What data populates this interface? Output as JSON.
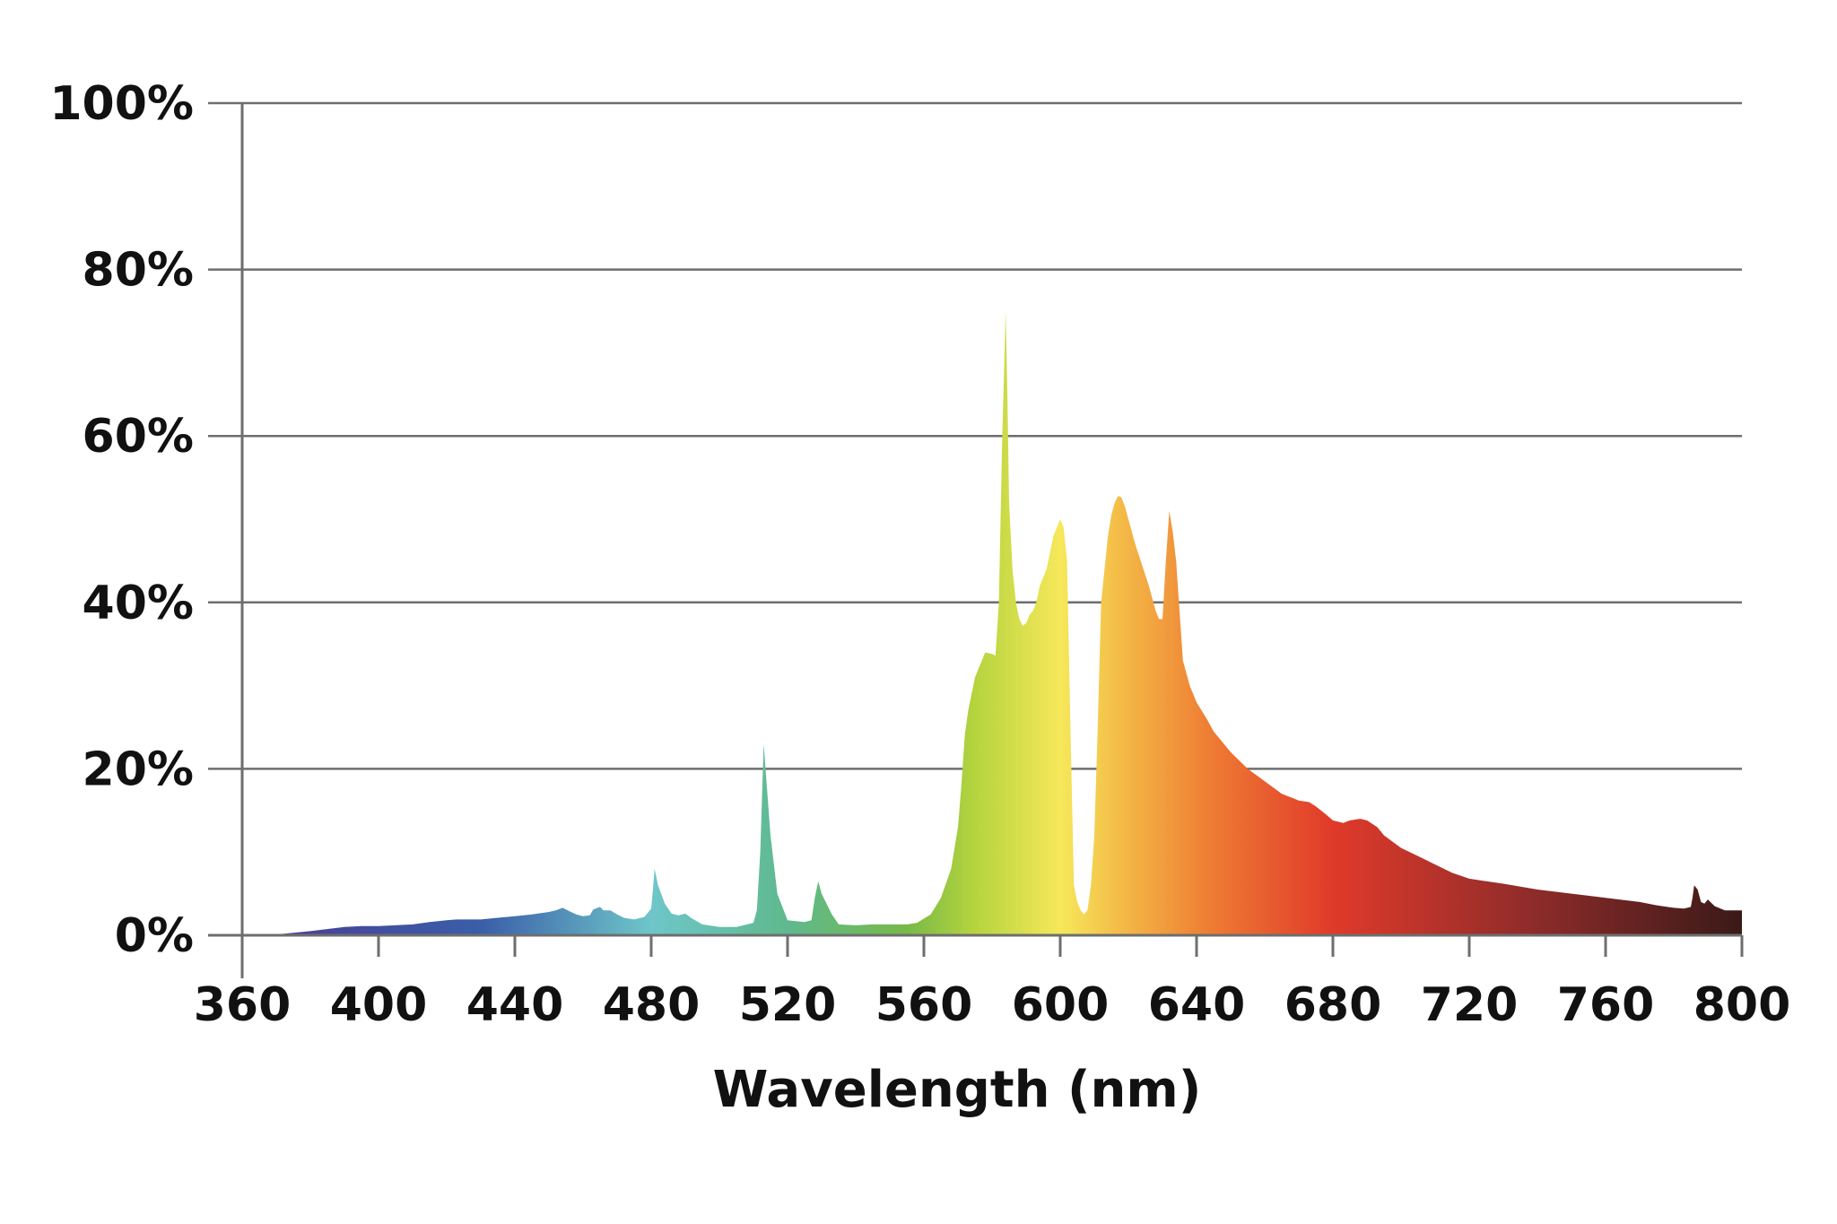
{
  "chart_data": {
    "type": "area",
    "title": "",
    "xlabel": "Wavelength (nm)",
    "ylabel": "",
    "xlim": [
      360,
      800
    ],
    "ylim": [
      0,
      100
    ],
    "x_ticks": [
      360,
      400,
      440,
      480,
      520,
      560,
      600,
      640,
      680,
      720,
      760,
      800
    ],
    "y_ticks": [
      0,
      20,
      40,
      60,
      80,
      100
    ],
    "y_tick_labels": [
      "0%",
      "20%",
      "40%",
      "60%",
      "80%",
      "100%"
    ],
    "grid": "horizontal",
    "gradient_colors": [
      {
        "nm": 370,
        "color": "#4a3e96"
      },
      {
        "nm": 430,
        "color": "#3a5ea8"
      },
      {
        "nm": 480,
        "color": "#6ec6c9"
      },
      {
        "nm": 520,
        "color": "#5fb98e"
      },
      {
        "nm": 555,
        "color": "#77b948"
      },
      {
        "nm": 575,
        "color": "#b5d43e"
      },
      {
        "nm": 600,
        "color": "#f6e85a"
      },
      {
        "nm": 620,
        "color": "#f3b545"
      },
      {
        "nm": 645,
        "color": "#ee7a33"
      },
      {
        "nm": 680,
        "color": "#e03a2a"
      },
      {
        "nm": 740,
        "color": "#8c2b2a"
      },
      {
        "nm": 800,
        "color": "#3a1a18"
      }
    ],
    "series": [
      {
        "x": [
          370,
          380,
          390,
          395,
          400,
          410,
          415,
          420,
          423,
          430,
          435,
          440,
          445,
          450,
          452,
          454,
          456,
          458,
          460,
          462,
          463,
          465,
          466,
          468,
          470,
          472,
          475,
          478,
          480,
          480.5,
          481,
          482,
          484,
          486,
          488,
          490,
          492,
          495,
          500,
          505,
          510,
          511,
          512,
          513,
          515,
          517,
          520,
          525,
          527,
          528,
          529,
          530,
          533,
          535,
          540,
          545,
          550,
          555,
          558,
          562,
          565,
          568,
          570,
          571,
          572,
          573,
          574,
          575,
          576,
          578,
          580,
          581,
          582,
          583,
          584,
          584.5,
          585,
          586,
          587,
          588,
          589,
          590,
          591,
          592,
          593,
          594,
          595,
          596,
          597,
          598,
          599,
          600,
          601,
          602,
          603,
          604,
          605,
          606,
          607,
          608,
          609,
          610,
          611,
          612,
          613,
          614,
          615,
          616,
          617,
          618,
          619,
          620,
          622,
          624,
          626,
          628,
          629,
          630,
          631,
          632,
          633,
          634,
          636,
          638,
          640,
          643,
          645,
          650,
          655,
          660,
          665,
          670,
          673,
          675,
          678,
          680,
          683,
          685,
          688,
          690,
          693,
          695,
          700,
          705,
          710,
          715,
          720,
          725,
          730,
          740,
          750,
          760,
          770,
          775,
          780,
          783,
          785,
          785.5,
          786,
          787,
          788,
          789,
          790,
          792,
          795,
          800
        ],
        "values": [
          0.1,
          0.5,
          1.0,
          1.1,
          1.1,
          1.3,
          1.6,
          1.8,
          1.9,
          1.9,
          2.1,
          2.3,
          2.5,
          2.8,
          3.0,
          3.3,
          2.9,
          2.5,
          2.3,
          2.4,
          3.1,
          3.4,
          3.0,
          3.0,
          2.5,
          2.1,
          1.9,
          2.2,
          3.2,
          5.5,
          8.0,
          6.0,
          3.8,
          2.6,
          2.4,
          2.6,
          2.0,
          1.3,
          1.0,
          1.0,
          1.5,
          3.0,
          10.0,
          23.0,
          12.0,
          5.0,
          1.8,
          1.6,
          1.8,
          4.5,
          6.5,
          5.0,
          2.5,
          1.3,
          1.2,
          1.3,
          1.3,
          1.3,
          1.5,
          2.5,
          4.5,
          8.0,
          13.0,
          18.0,
          24.0,
          27.0,
          29.0,
          31.0,
          32.0,
          34.0,
          33.8,
          33.6,
          40.0,
          60.0,
          75.0,
          65.0,
          52.0,
          44.0,
          40.0,
          38.0,
          37.2,
          37.5,
          38.5,
          39.0,
          40.0,
          42.0,
          43.0,
          44.0,
          46.0,
          48.0,
          49.0,
          50.0,
          49.0,
          45.0,
          25.0,
          6.0,
          4.0,
          3.0,
          2.5,
          3.0,
          6.0,
          12.0,
          25.0,
          40.0,
          44.0,
          48.0,
          50.5,
          52.0,
          52.8,
          52.6,
          51.5,
          50.0,
          47.0,
          44.5,
          42.0,
          39.0,
          38.0,
          38.0,
          45.0,
          51.0,
          48.5,
          45.0,
          33.0,
          30.0,
          28.0,
          26.0,
          24.5,
          22.0,
          20.0,
          18.5,
          17.0,
          16.2,
          16.0,
          15.5,
          14.5,
          13.8,
          13.5,
          13.8,
          14.0,
          13.8,
          13.0,
          12.0,
          10.5,
          9.5,
          8.5,
          7.5,
          6.8,
          6.5,
          6.2,
          5.5,
          5.0,
          4.5,
          4.0,
          3.6,
          3.3,
          3.2,
          3.4,
          4.5,
          6.0,
          5.5,
          4.0,
          3.8,
          4.3,
          3.5,
          3.0,
          3.0
        ]
      }
    ]
  }
}
